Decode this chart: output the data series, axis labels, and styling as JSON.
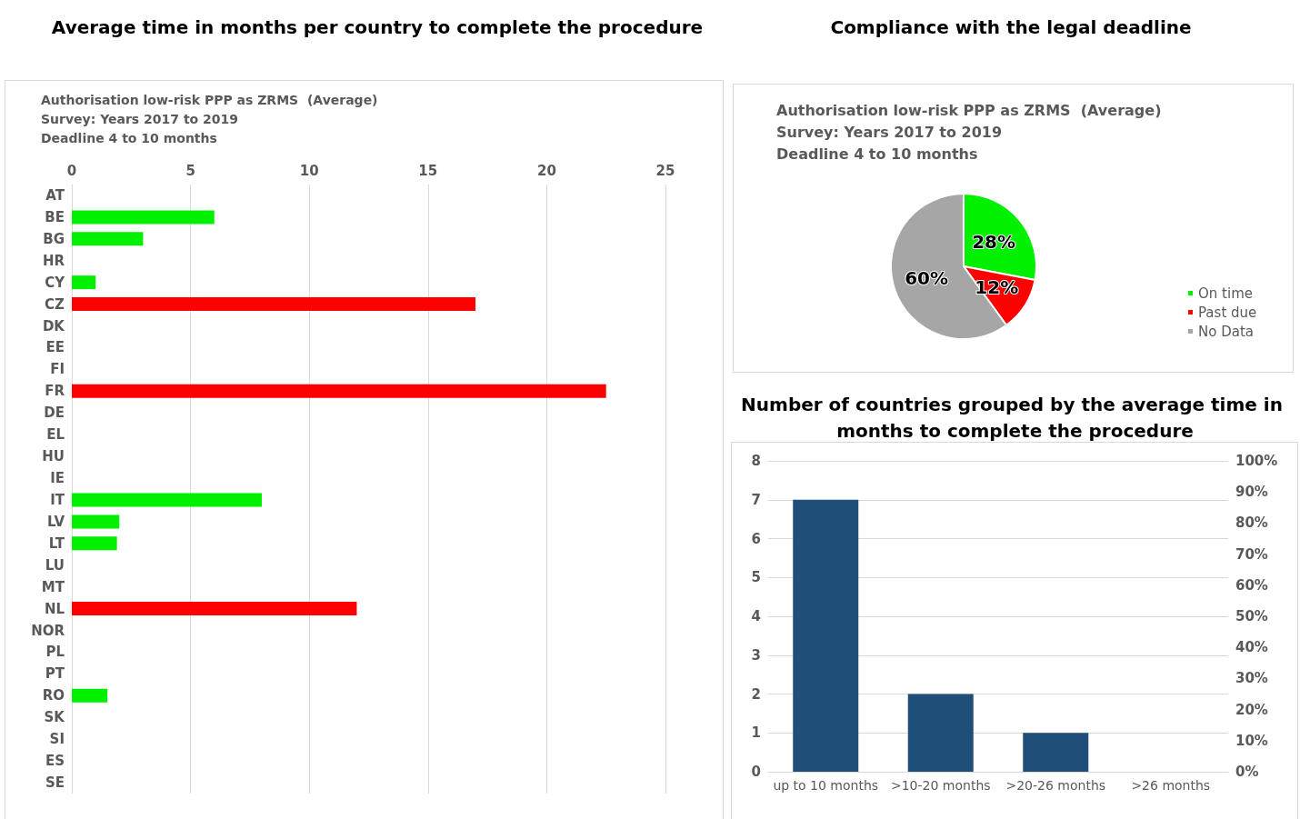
{
  "chart_data": [
    {
      "type": "bar",
      "orientation": "horizontal",
      "title": "Average time in months per country to complete the procedure",
      "subtitle": "Authorisation low-risk PPP as ZRMS  (Average)\nSurvey: Years 2017 to 2019\nDeadline 4 to 10 months",
      "categories": [
        "AT",
        "BE",
        "BG",
        "HR",
        "CY",
        "CZ",
        "DK",
        "EE",
        "FI",
        "FR",
        "DE",
        "EL",
        "HU",
        "IE",
        "IT",
        "LV",
        "LT",
        "LU",
        "MT",
        "NL",
        "NOR",
        "PL",
        "PT",
        "RO",
        "SK",
        "SI",
        "ES",
        "SE"
      ],
      "values": [
        null,
        6.0,
        3.0,
        null,
        1.0,
        17.0,
        null,
        null,
        null,
        22.5,
        null,
        null,
        null,
        null,
        8.0,
        2.0,
        1.9,
        null,
        null,
        12.0,
        null,
        null,
        null,
        1.5,
        null,
        null,
        null,
        null
      ],
      "colors": [
        "#00f000",
        "#00f000",
        "#00f000",
        "#00f000",
        "#00f000",
        "#ff0000",
        "#00f000",
        "#00f000",
        "#00f000",
        "#ff0000",
        "#00f000",
        "#00f000",
        "#00f000",
        "#00f000",
        "#00f000",
        "#00f000",
        "#00f000",
        "#00f000",
        "#00f000",
        "#ff0000",
        "#00f000",
        "#00f000",
        "#00f000",
        "#00f000",
        "#00f000",
        "#00f000",
        "#00f000",
        "#00f000"
      ],
      "xlim": [
        0,
        25
      ],
      "xticks": [
        0,
        5,
        10,
        15,
        20,
        25
      ],
      "grid": "x"
    },
    {
      "type": "pie",
      "title": "Compliance with the legal deadline",
      "subtitle": "Authorisation low-risk PPP as ZRMS  (Average)\nSurvey: Years 2017 to 2019\nDeadline 4 to 10 months",
      "categories": [
        "On time",
        "Past due",
        "No Data"
      ],
      "values": [
        28,
        12,
        60
      ],
      "colors": [
        "#00f000",
        "#ff0000",
        "#a6a6a6"
      ],
      "value_labels": [
        "28%",
        "12%",
        "60%"
      ],
      "legend": "right"
    },
    {
      "type": "bar",
      "title": "Number of countries grouped by the average time in months to complete the procedure",
      "categories": [
        "up to 10 months",
        ">10-20 months",
        ">20-26 months",
        ">26 months"
      ],
      "values": [
        7,
        2,
        1,
        0
      ],
      "color": "#1f4e79",
      "ylim": [
        0,
        8
      ],
      "yticks": [
        0,
        1,
        2,
        3,
        4,
        5,
        6,
        7,
        8
      ],
      "y2lim": [
        0,
        100
      ],
      "y2ticks": [
        {
          "value": 0,
          "label": "0%"
        },
        {
          "value": 10,
          "label": "10%"
        },
        {
          "value": 20,
          "label": "20%"
        },
        {
          "value": 30,
          "label": "30%"
        },
        {
          "value": 40,
          "label": "40%"
        },
        {
          "value": 50,
          "label": "50%"
        },
        {
          "value": 60,
          "label": "60%"
        },
        {
          "value": 70,
          "label": "70%"
        },
        {
          "value": 80,
          "label": "80%"
        },
        {
          "value": 90,
          "label": "90%"
        },
        {
          "value": 100,
          "label": "100%"
        }
      ],
      "grid": "y"
    }
  ]
}
